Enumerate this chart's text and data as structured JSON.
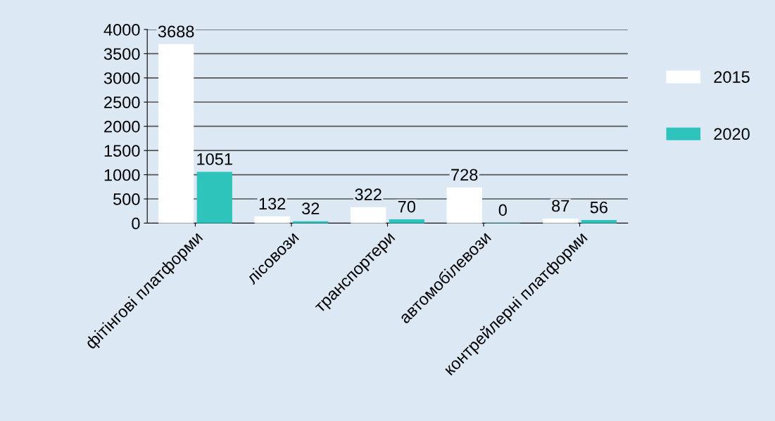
{
  "chart_data": {
    "type": "bar",
    "categories": [
      "фітінгові платформи",
      "лісовози",
      "транспортери",
      "автомобілевози",
      "контрейлерні платформи"
    ],
    "series": [
      {
        "name": "2015",
        "color": "#ffffff",
        "values": [
          3688,
          132,
          322,
          728,
          87
        ]
      },
      {
        "name": "2020",
        "color": "#2ec4bb",
        "values": [
          1051,
          32,
          70,
          0,
          56
        ]
      }
    ],
    "ylim": [
      0,
      4000
    ],
    "yticks": [
      0,
      500,
      1000,
      1500,
      2000,
      2500,
      3000,
      3500,
      4000
    ],
    "grid": "y",
    "legend": "right",
    "data_labels": true
  }
}
